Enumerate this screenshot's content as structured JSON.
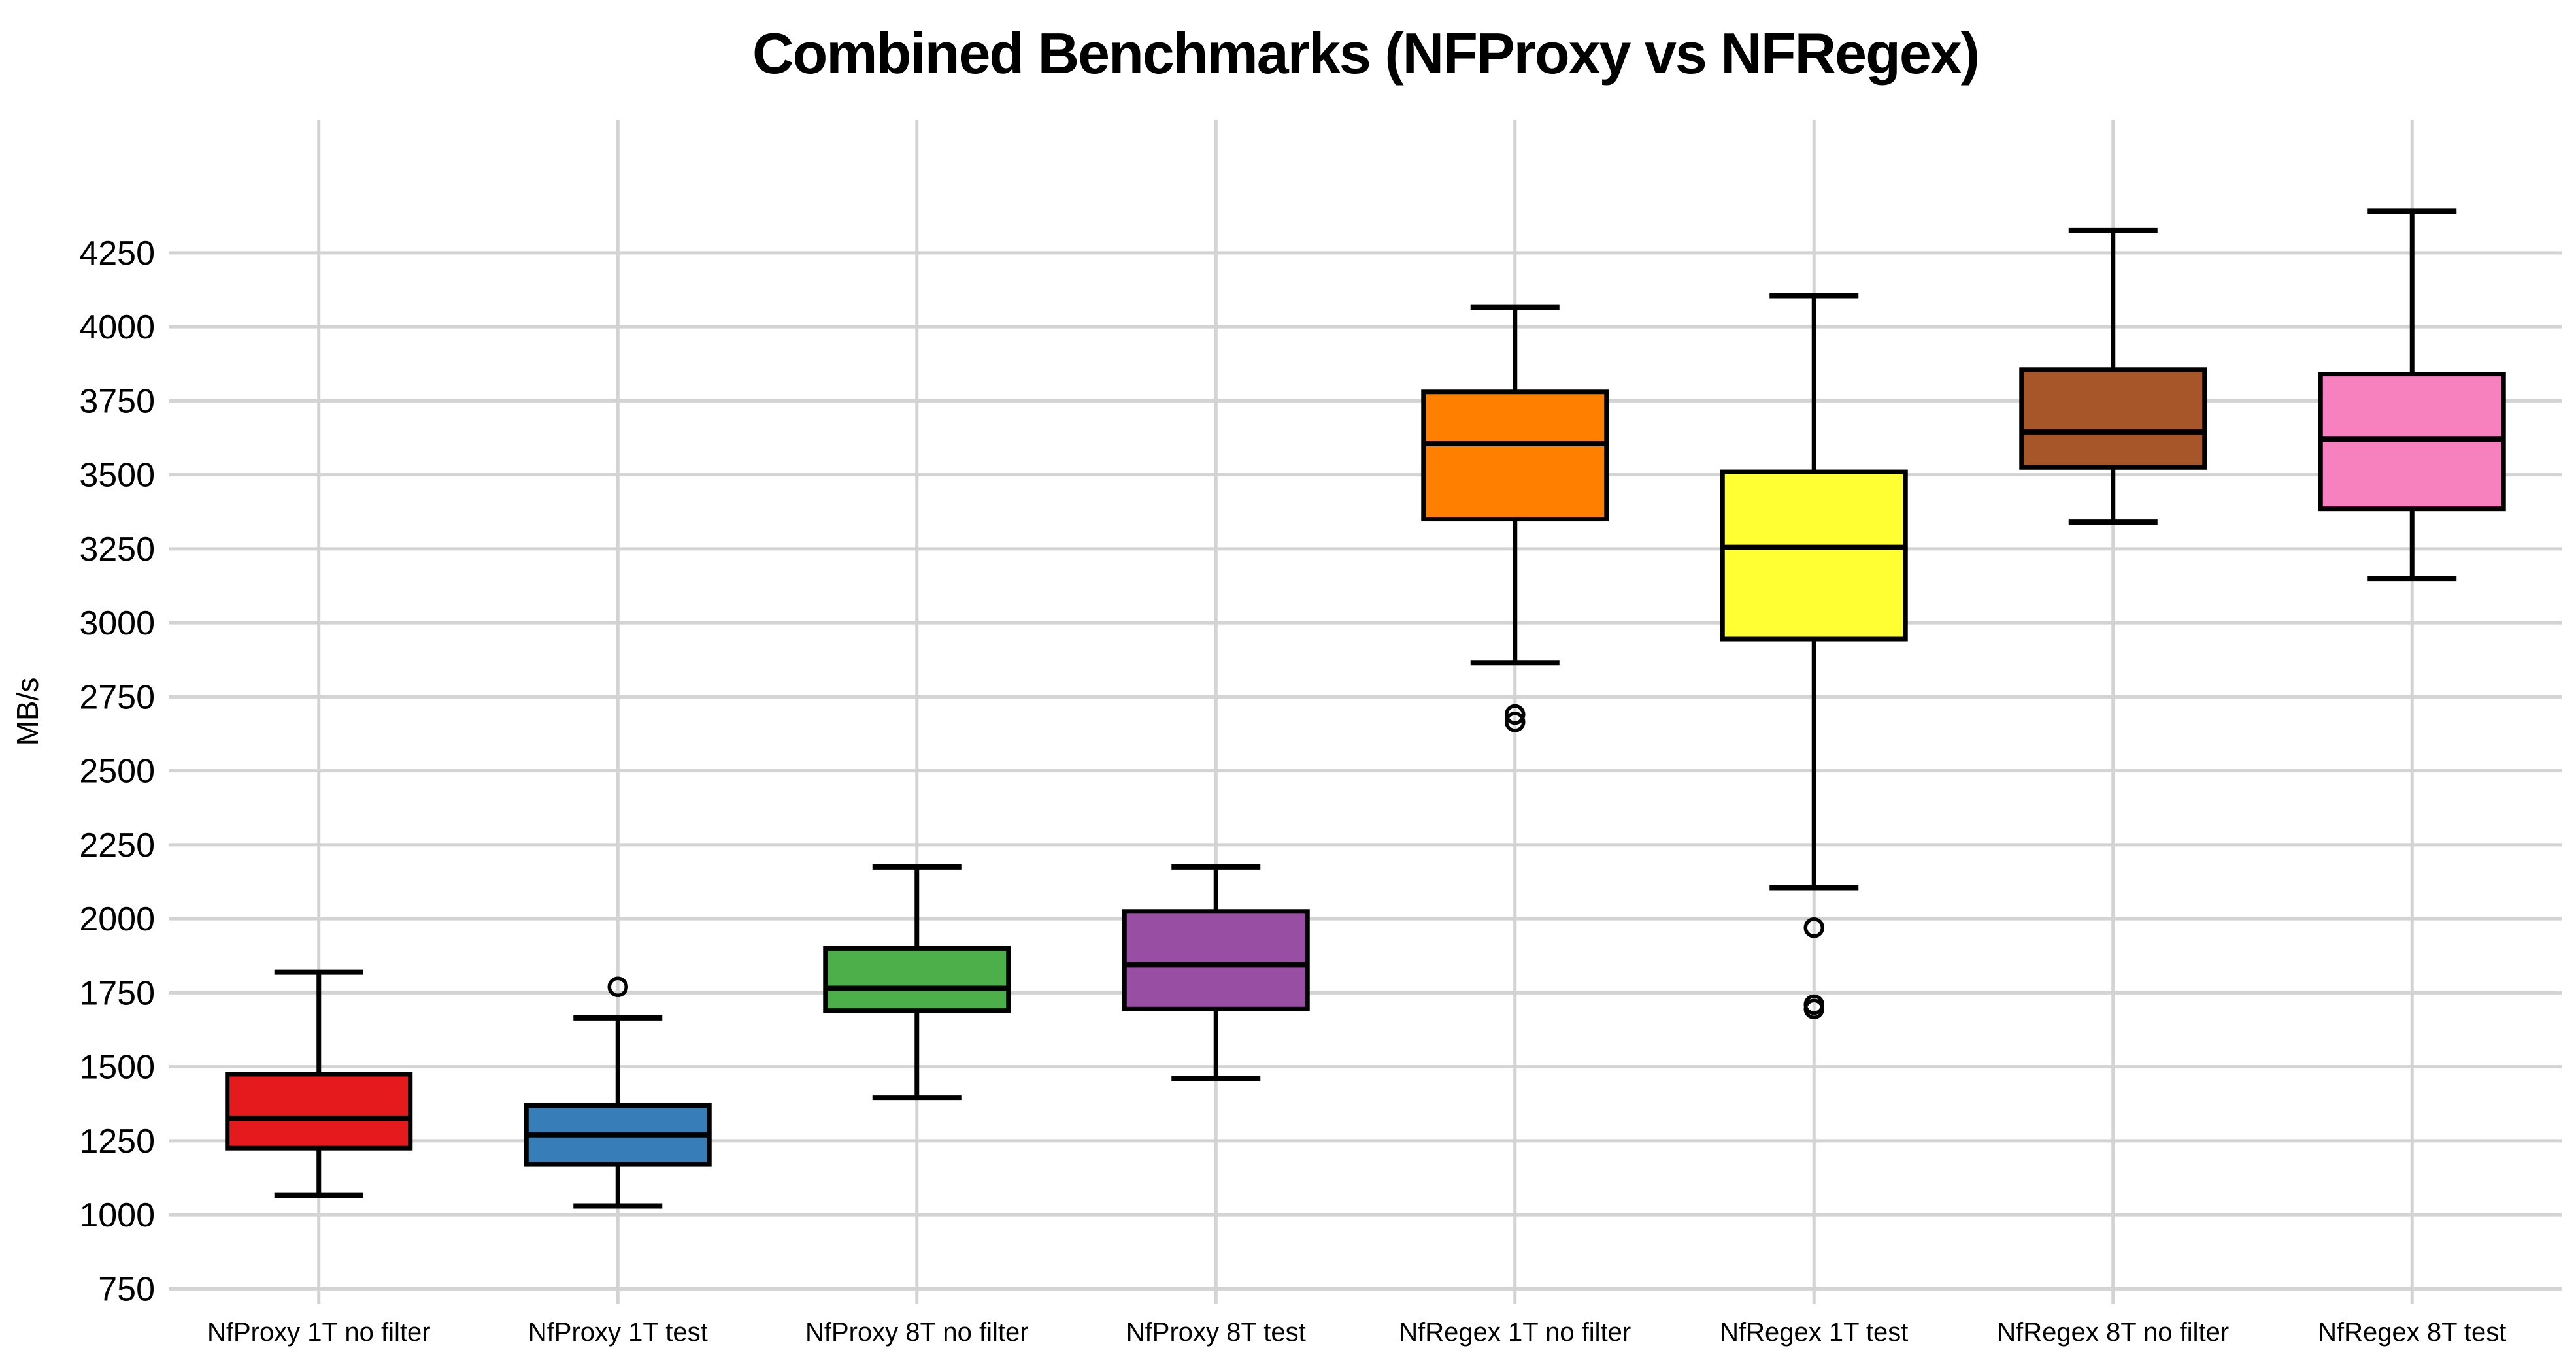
{
  "page": {
    "background": "#ffffff"
  },
  "chart_data": {
    "type": "boxplot",
    "title": "Combined Benchmarks (NFProxy vs NFRegex)",
    "ylabel": "MB/s",
    "xlabel": "",
    "ylim": [
      700,
      4700
    ],
    "yticks": [
      750,
      1000,
      1250,
      1500,
      1750,
      2000,
      2250,
      2500,
      2750,
      3000,
      3250,
      3500,
      3750,
      4000,
      4250
    ],
    "grid": true,
    "legend_position": "none",
    "categories": [
      "NfProxy 1T no filter",
      "NfProxy 1T test",
      "NfProxy 8T no filter",
      "NfProxy 8T test",
      "NfRegex 1T no filter",
      "NfRegex 1T test",
      "NfRegex 8T no filter",
      "NfRegex 8T test"
    ],
    "boxes": [
      {
        "label": "NfProxy 1T no filter",
        "color": "#e41a1c",
        "whislo": 1065,
        "q1": 1225,
        "med": 1325,
        "q3": 1475,
        "whishi": 1820,
        "fliers": []
      },
      {
        "label": "NfProxy 1T test",
        "color": "#377eb8",
        "whislo": 1030,
        "q1": 1170,
        "med": 1270,
        "q3": 1370,
        "whishi": 1665,
        "fliers": [
          1770
        ]
      },
      {
        "label": "NfProxy 8T no filter",
        "color": "#4daf4a",
        "whislo": 1395,
        "q1": 1690,
        "med": 1765,
        "q3": 1900,
        "whishi": 2175,
        "fliers": []
      },
      {
        "label": "NfProxy 8T test",
        "color": "#984ea3",
        "whislo": 1460,
        "q1": 1695,
        "med": 1845,
        "q3": 2025,
        "whishi": 2175,
        "fliers": []
      },
      {
        "label": "NfRegex 1T no filter",
        "color": "#ff7f00",
        "whislo": 2865,
        "q1": 3350,
        "med": 3605,
        "q3": 3780,
        "whishi": 4065,
        "fliers": [
          2690,
          2665
        ]
      },
      {
        "label": "NfRegex 1T test",
        "color": "#ffff33",
        "whislo": 2105,
        "q1": 2945,
        "med": 3255,
        "q3": 3510,
        "whishi": 4105,
        "fliers": [
          1970,
          1710,
          1695
        ]
      },
      {
        "label": "NfRegex 8T no filter",
        "color": "#a65628",
        "whislo": 3340,
        "q1": 3525,
        "med": 3645,
        "q3": 3855,
        "whishi": 4325,
        "fliers": []
      },
      {
        "label": "NfRegex 8T test",
        "color": "#f781bf",
        "whislo": 3150,
        "q1": 3385,
        "med": 3620,
        "q3": 3840,
        "whishi": 4390,
        "fliers": []
      }
    ],
    "styles": {
      "grid_color": "#d3d3d3",
      "box_edge_color": "#000000",
      "text_color": "#000000",
      "background": "#ffffff"
    }
  }
}
